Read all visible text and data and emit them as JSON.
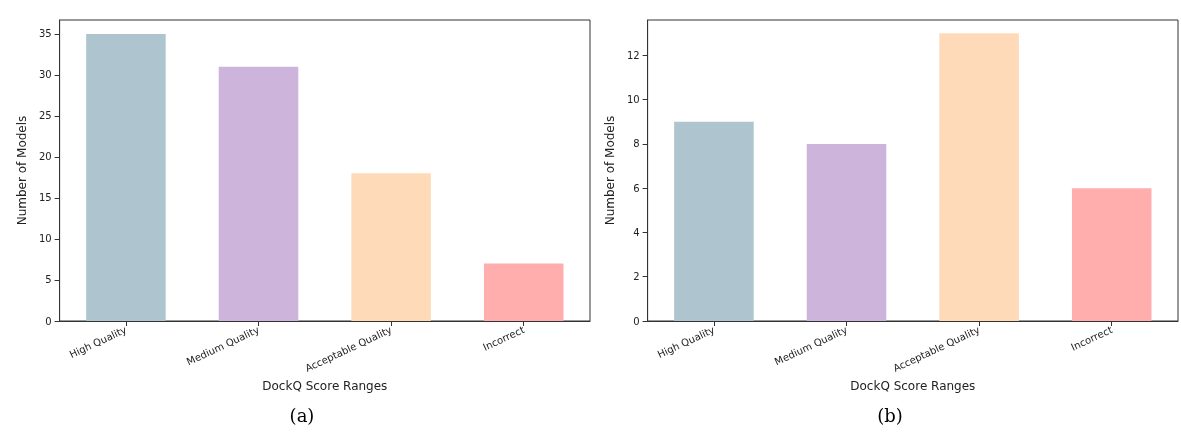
{
  "chart_data": [
    {
      "type": "bar",
      "xlabel": "DockQ Score Ranges",
      "ylabel": "Number of Models",
      "categories": [
        "High Quality",
        "Medium Quality",
        "Acceptable Quality",
        "Incorrect"
      ],
      "values": [
        35,
        31,
        18,
        7
      ],
      "colors": [
        "#aec5cf",
        "#cdb4db",
        "#ffdab9",
        "#ffadad"
      ],
      "ylim": [
        0,
        36.7
      ],
      "yticks": [
        0,
        5,
        10,
        15,
        20,
        25,
        30,
        35
      ],
      "grid": false,
      "annotations": [
        "(a)"
      ]
    },
    {
      "type": "bar",
      "xlabel": "DockQ Score Ranges",
      "ylabel": "Number of Models",
      "categories": [
        "High Quality",
        "Medium Quality",
        "Acceptable Quality",
        "Incorrect"
      ],
      "values": [
        9,
        8,
        13,
        6
      ],
      "colors": [
        "#aec5cf",
        "#cdb4db",
        "#ffdab9",
        "#ffadad"
      ],
      "ylim": [
        0,
        13.6
      ],
      "yticks": [
        0,
        2,
        4,
        6,
        8,
        10,
        12
      ],
      "grid": false,
      "annotations": [
        "(b)"
      ]
    }
  ]
}
